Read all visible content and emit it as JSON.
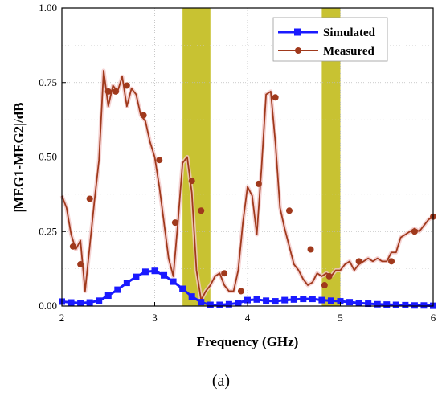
{
  "chart_data": {
    "type": "line",
    "xlabel": "Frequency (GHz)",
    "ylabel": "|MEG1-MEG2|/dB",
    "xlim": [
      2,
      6
    ],
    "ylim": [
      0,
      1
    ],
    "x_ticks": [
      "2",
      "3",
      "4",
      "5",
      "6"
    ],
    "y_ticks": [
      "0.00",
      "0.25",
      "0.50",
      "0.75",
      "1.00"
    ],
    "grid": "dotted",
    "legend_position": "top-right",
    "highlight_bands": [
      [
        3.3,
        3.6
      ],
      [
        4.8,
        5.0
      ]
    ],
    "highlight_color": "#c8c232",
    "series": [
      {
        "name": "Simulated",
        "color": "#1a1aff",
        "marker": "square",
        "x": [
          2.0,
          2.1,
          2.2,
          2.3,
          2.4,
          2.5,
          2.6,
          2.7,
          2.8,
          2.9,
          3.0,
          3.1,
          3.2,
          3.3,
          3.4,
          3.5,
          3.6,
          3.7,
          3.8,
          3.9,
          4.0,
          4.1,
          4.2,
          4.3,
          4.4,
          4.5,
          4.6,
          4.7,
          4.8,
          4.9,
          5.0,
          5.1,
          5.2,
          5.3,
          5.4,
          5.5,
          5.6,
          5.7,
          5.8,
          5.9,
          6.0
        ],
        "y": [
          0.015,
          0.012,
          0.01,
          0.012,
          0.018,
          0.035,
          0.055,
          0.078,
          0.098,
          0.115,
          0.118,
          0.103,
          0.082,
          0.058,
          0.032,
          0.013,
          0.004,
          0.004,
          0.006,
          0.01,
          0.02,
          0.022,
          0.018,
          0.016,
          0.02,
          0.022,
          0.024,
          0.024,
          0.02,
          0.018,
          0.016,
          0.013,
          0.01,
          0.008,
          0.006,
          0.005,
          0.004,
          0.003,
          0.002,
          0.002,
          0.001
        ]
      },
      {
        "name": "Measured",
        "color": "#a0391c",
        "marker": "circle",
        "x": [
          2.0,
          2.05,
          2.1,
          2.15,
          2.2,
          2.25,
          2.3,
          2.35,
          2.4,
          2.45,
          2.5,
          2.55,
          2.6,
          2.65,
          2.7,
          2.75,
          2.8,
          2.85,
          2.9,
          2.95,
          3.0,
          3.05,
          3.1,
          3.15,
          3.2,
          3.25,
          3.3,
          3.35,
          3.4,
          3.45,
          3.5,
          3.55,
          3.6,
          3.65,
          3.7,
          3.75,
          3.8,
          3.85,
          3.9,
          3.95,
          4.0,
          4.05,
          4.1,
          4.15,
          4.2,
          4.25,
          4.3,
          4.35,
          4.4,
          4.45,
          4.5,
          4.55,
          4.6,
          4.65,
          4.7,
          4.75,
          4.8,
          4.85,
          4.9,
          4.95,
          5.0,
          5.05,
          5.1,
          5.15,
          5.2,
          5.25,
          5.3,
          5.35,
          5.4,
          5.45,
          5.5,
          5.55,
          5.6,
          5.65,
          5.7,
          5.75,
          5.8,
          5.85,
          5.9,
          5.95,
          6.0
        ],
        "y": [
          0.37,
          0.33,
          0.24,
          0.19,
          0.22,
          0.05,
          0.2,
          0.35,
          0.49,
          0.79,
          0.67,
          0.74,
          0.72,
          0.77,
          0.67,
          0.73,
          0.71,
          0.64,
          0.62,
          0.55,
          0.5,
          0.4,
          0.28,
          0.16,
          0.1,
          0.28,
          0.48,
          0.5,
          0.38,
          0.12,
          0.02,
          0.05,
          0.07,
          0.1,
          0.11,
          0.07,
          0.05,
          0.05,
          0.12,
          0.28,
          0.4,
          0.37,
          0.24,
          0.46,
          0.71,
          0.72,
          0.55,
          0.33,
          0.26,
          0.2,
          0.14,
          0.12,
          0.09,
          0.07,
          0.08,
          0.11,
          0.1,
          0.11,
          0.1,
          0.12,
          0.12,
          0.14,
          0.15,
          0.12,
          0.14,
          0.15,
          0.16,
          0.15,
          0.16,
          0.15,
          0.15,
          0.18,
          0.18,
          0.23,
          0.24,
          0.25,
          0.26,
          0.25,
          0.27,
          0.29,
          0.3
        ],
        "marker_x": [
          2.12,
          2.2,
          2.3,
          2.5,
          2.58,
          2.7,
          2.88,
          3.05,
          3.22,
          3.4,
          3.5,
          3.75,
          3.93,
          4.12,
          4.3,
          4.45,
          4.68,
          4.83,
          4.88,
          5.2,
          5.55,
          5.8,
          6.0
        ],
        "marker_y": [
          0.2,
          0.14,
          0.36,
          0.72,
          0.72,
          0.74,
          0.64,
          0.49,
          0.28,
          0.42,
          0.32,
          0.11,
          0.05,
          0.41,
          0.7,
          0.32,
          0.19,
          0.07,
          0.1,
          0.15,
          0.15,
          0.25,
          0.3
        ]
      }
    ],
    "caption": "(a)"
  }
}
